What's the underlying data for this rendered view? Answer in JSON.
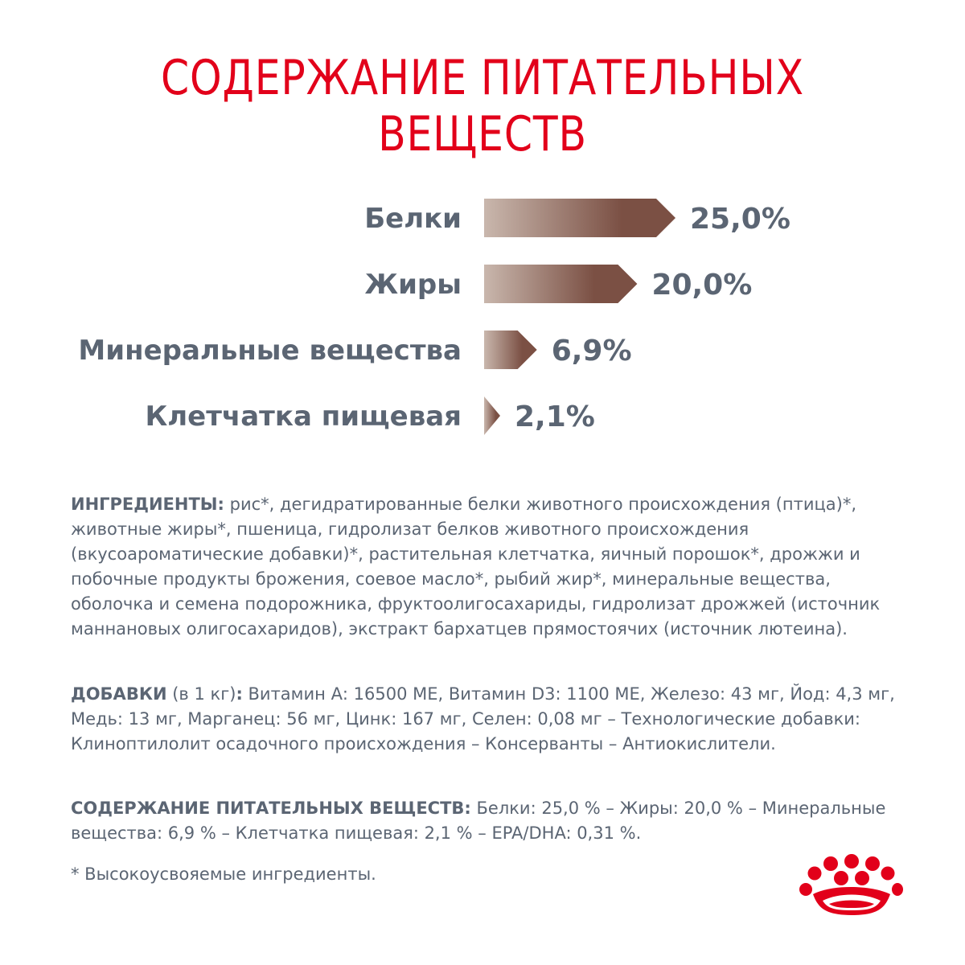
{
  "title": "СОДЕРЖАНИЕ ПИТАТЕЛЬНЫХ ВЕЩЕСТВ",
  "chart_data": {
    "type": "bar",
    "orientation": "horizontal",
    "categories": [
      "Белки",
      "Жиры",
      "Минеральные вещества",
      "Клетчатка пищевая"
    ],
    "values": [
      25.0,
      20.0,
      6.9,
      2.1
    ],
    "value_labels": [
      "25,0%",
      "20,0%",
      "6,9%",
      "2,1%"
    ],
    "unit": "%",
    "bar_color_start": "#c9b7ad",
    "bar_color_end": "#7b5044"
  },
  "ingredients": {
    "heading": "ИНГРЕДИЕНТЫ:",
    "text": " рис*, дегидратированные белки животного происхождения (птица)*, животные жиры*, пшеница, гидролизат белков животного происхождения (вкусоароматические добавки)*, растительная клетчатка, яичный порошок*, дрожжи и побочные продукты брожения, соевое масло*, рыбий жир*, минеральные вещества, оболочка и семена подорожника, фруктоолигосахариды, гидролизат дрожжей (источник маннановых олигосахаридов), экстракт бархатцев прямостоячих (источник лютеина)."
  },
  "additives": {
    "heading": "ДОБАВКИ",
    "qualifier": " (в 1 кг)",
    "colon": ":",
    "text": " Витамин А: 16500 МЕ, Витамин D3: 1100 МЕ, Железо: 43 мг, Йод: 4,3 мг, Медь: 13 мг, Марганец: 56 мг, Цинк: 167 мг, Селен: 0,08 мг – Технологические добавки: Клиноптилолит осадочного происхождения – Консерванты – Антиокислители."
  },
  "nutrients": {
    "heading": "СОДЕРЖАНИЕ ПИТАТЕЛЬНЫХ ВЕЩЕСТВ:",
    "text": " Белки: 25,0 % – Жиры: 20,0 % – Минеральные вещества: 6,9 % – Клетчатка пищевая: 2,1 % – EPA/DHA: 0,31 %."
  },
  "footnote": "* Высокоусвояемые ингредиенты.",
  "colors": {
    "accent_red": "#e2001a",
    "text_gray": "#5b6573"
  },
  "logo_icon": "royal-canin-crown-icon"
}
